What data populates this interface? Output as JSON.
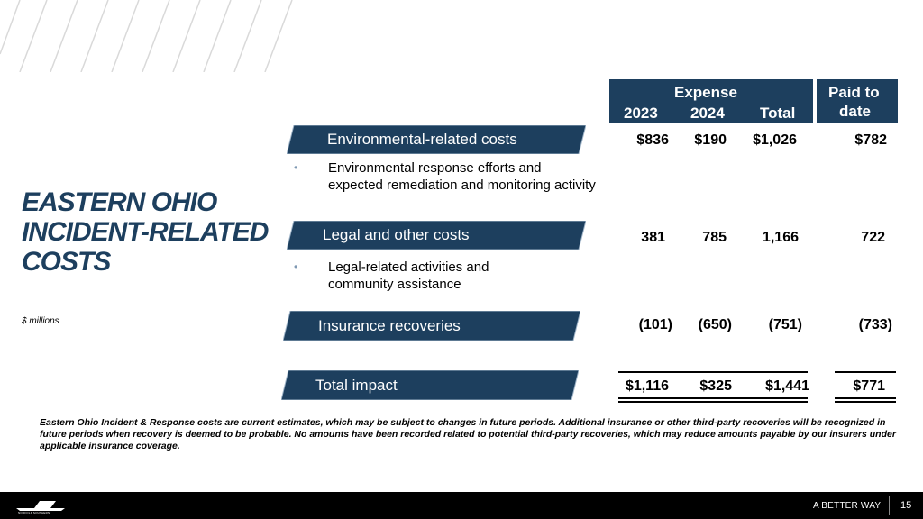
{
  "title_lines": [
    "EASTERN OHIO",
    "INCIDENT-RELATED",
    "COSTS"
  ],
  "units_note": "$ millions",
  "header": {
    "expense_label": "Expense",
    "year_2023": "2023",
    "year_2024": "2024",
    "total": "Total",
    "paid_line1": "Paid to",
    "paid_line2": "date"
  },
  "rows": {
    "environmental": {
      "label": "Environmental-related costs",
      "bullet": "Environmental response efforts and expected remediation and monitoring activity",
      "v2023": "$836",
      "v2024": "$190",
      "total": "$1,026",
      "paid": "$782"
    },
    "legal": {
      "label": "Legal and other costs",
      "bullet": "Legal-related activities and community assistance",
      "v2023": "381",
      "v2024": "785",
      "total": "1,166",
      "paid": "722"
    },
    "insurance": {
      "label": "Insurance recoveries",
      "v2023": "(101)",
      "v2024": "(650)",
      "total": "(751)",
      "paid": "(733)"
    },
    "total_impact": {
      "label": "Total impact",
      "v2023": "$1,116",
      "v2024": "$325",
      "total": "$1,441",
      "paid": "$771"
    }
  },
  "footnote": "Eastern Ohio Incident & Response costs are current estimates, which may be subject to changes in future periods.  Additional insurance or other third-party recoveries will be recognized in future periods when recovery is deemed to be probable. No amounts have been recorded related to potential third-party recoveries, which may reduce amounts payable by our insurers under applicable insurance coverage.",
  "footer": {
    "logo_text": "NORFOLK SOUTHERN",
    "tagline": "A BETTER WAY",
    "page_number": "15"
  },
  "colors": {
    "brand_navy": "#1d3f5e",
    "bullet_blue": "#7f99b3",
    "footer_bg": "#000000"
  }
}
